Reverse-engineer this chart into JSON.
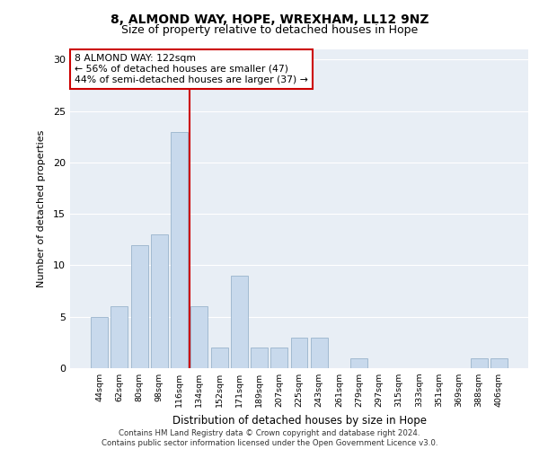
{
  "title1": "8, ALMOND WAY, HOPE, WREXHAM, LL12 9NZ",
  "title2": "Size of property relative to detached houses in Hope",
  "xlabel": "Distribution of detached houses by size in Hope",
  "ylabel": "Number of detached properties",
  "annotation_line1": "8 ALMOND WAY: 122sqm",
  "annotation_line2": "← 56% of detached houses are smaller (47)",
  "annotation_line3": "44% of semi-detached houses are larger (37) →",
  "bar_labels": [
    "44sqm",
    "62sqm",
    "80sqm",
    "98sqm",
    "116sqm",
    "134sqm",
    "152sqm",
    "171sqm",
    "189sqm",
    "207sqm",
    "225sqm",
    "243sqm",
    "261sqm",
    "279sqm",
    "297sqm",
    "315sqm",
    "333sqm",
    "351sqm",
    "369sqm",
    "388sqm",
    "406sqm"
  ],
  "bar_values": [
    5,
    6,
    12,
    13,
    23,
    6,
    2,
    9,
    2,
    2,
    3,
    3,
    0,
    1,
    0,
    0,
    0,
    0,
    0,
    1,
    1
  ],
  "bar_color": "#c8d9ec",
  "bar_edgecolor": "#9ab4cc",
  "vline_color": "#cc0000",
  "ylim": [
    0,
    31
  ],
  "yticks": [
    0,
    5,
    10,
    15,
    20,
    25,
    30
  ],
  "annotation_box_color": "#cc0000",
  "background_color": "#e8eef5",
  "footer": "Contains HM Land Registry data © Crown copyright and database right 2024.\nContains public sector information licensed under the Open Government Licence v3.0."
}
